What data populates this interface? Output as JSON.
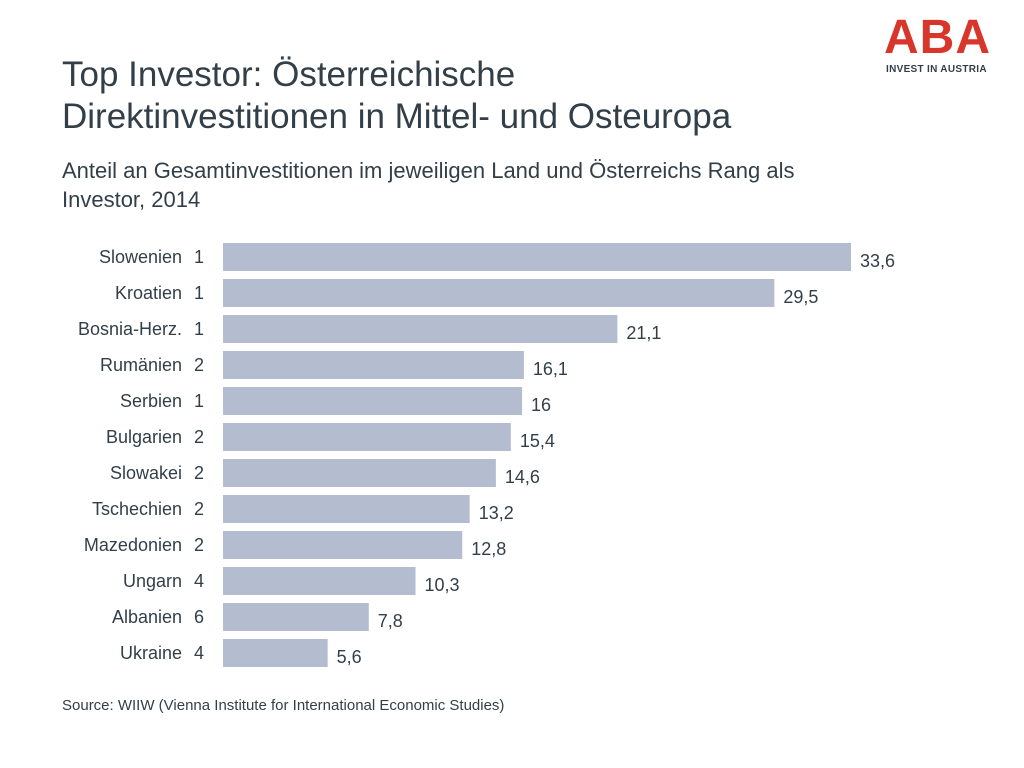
{
  "logo": {
    "text": "ABA",
    "tagline": "INVEST IN AUSTRIA",
    "color": "#d9362b"
  },
  "title_lines": [
    "Top Investor: Österreichische",
    "Direktinvestitionen in Mittel- und Osteuropa"
  ],
  "subtitle_lines": [
    "Anteil an Gesamtinvestitionen im jeweiligen Land und Österreichs Rang als",
    "Investor, 2014"
  ],
  "source": "Source: WIIW (Vienna Institute for International Economic Studies)",
  "colors": {
    "bar": "#b4bdd0",
    "text": "#333f48"
  },
  "chart_data": {
    "type": "bar",
    "orientation": "horizontal",
    "categories": [
      "Slowenien",
      "Kroatien",
      "Bosnia-Herz.",
      "Rumänien",
      "Serbien",
      "Bulgarien",
      "Slowakei",
      "Tschechien",
      "Mazedonien",
      "Ungarn",
      "Albanien",
      "Ukraine"
    ],
    "ranks": [
      "1",
      "1",
      "1",
      "2",
      "1",
      "2",
      "2",
      "2",
      "2",
      "4",
      "6",
      "4"
    ],
    "values": [
      33.6,
      29.5,
      21.1,
      16.1,
      16,
      15.4,
      14.6,
      13.2,
      12.8,
      10.3,
      7.8,
      5.6
    ],
    "value_labels": [
      "33,6",
      "29,5",
      "21,1",
      "16,1",
      "16",
      "15,4",
      "14,6",
      "13,2",
      "12,8",
      "10,3",
      "7,8",
      "5,6"
    ],
    "xlim": [
      0,
      33.6
    ],
    "grid": false,
    "legend": "none"
  }
}
